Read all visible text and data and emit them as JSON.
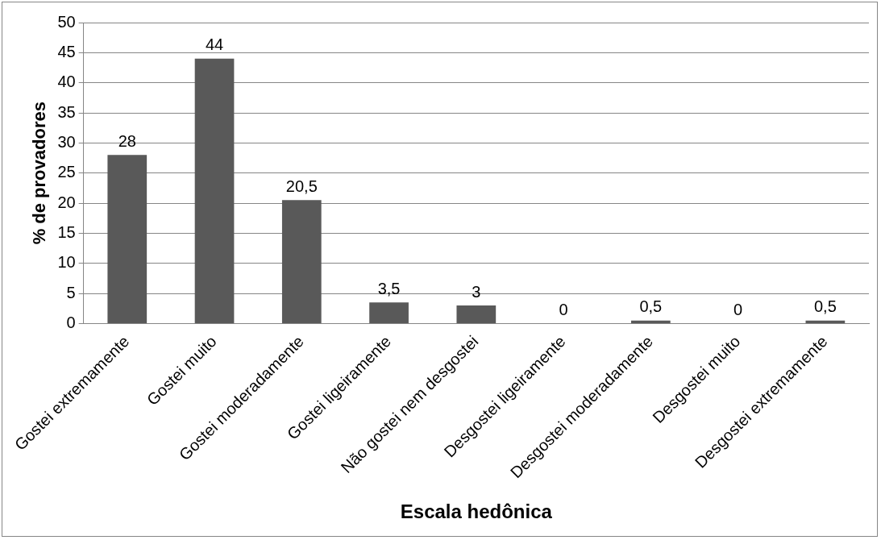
{
  "chart_data": {
    "type": "bar",
    "xlabel": "Escala hedônica",
    "ylabel": "% de provadores",
    "categories": [
      "Gostei extremamente",
      "Gostei muito",
      "Gostei moderadamente",
      "Gostei ligeiramente",
      "Não gostei nem desgostei",
      "Desgostei ligeiramente",
      "Desgostei moderadamente",
      "Desgostei muito",
      "Desgostei extremamente"
    ],
    "values": [
      28,
      44,
      20.5,
      3.5,
      3,
      0,
      0.5,
      0,
      0.5
    ],
    "value_labels": [
      "28",
      "44",
      "20,5",
      "3,5",
      "3",
      "0",
      "0,5",
      "0",
      "0,5"
    ],
    "color": "#595959",
    "ylim": [
      0,
      50
    ],
    "yticks": [
      0,
      5,
      10,
      15,
      20,
      25,
      30,
      35,
      40,
      45,
      50
    ],
    "grid": "y",
    "legend": false
  }
}
